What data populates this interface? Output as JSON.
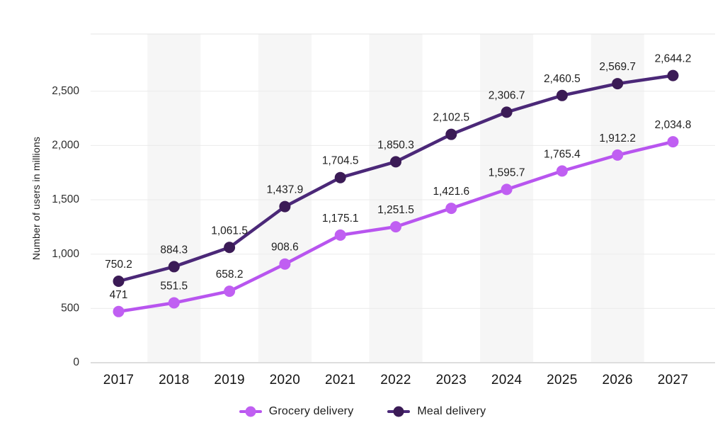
{
  "chart_data": {
    "type": "line",
    "title": "",
    "xlabel": "",
    "ylabel": "Number of users in millions",
    "categories": [
      "2017",
      "2018",
      "2019",
      "2020",
      "2021",
      "2022",
      "2023",
      "2024",
      "2025",
      "2026",
      "2027"
    ],
    "series": [
      {
        "name": "Grocery delivery",
        "values": [
          471,
          551.5,
          658.2,
          908.6,
          1175.1,
          1251.5,
          1421.6,
          1595.7,
          1765.4,
          1912.2,
          2034.8
        ],
        "labels": [
          "471",
          "551.5",
          "658.2",
          "908.6",
          "1,175.1",
          "1,251.5",
          "1,421.6",
          "1,595.7",
          "1,765.4",
          "1,912.2",
          "2,034.8"
        ],
        "line_color": "#b855ef",
        "dot_color": "#c05ff2"
      },
      {
        "name": "Meal delivery",
        "values": [
          750.2,
          884.3,
          1061.5,
          1437.9,
          1704.5,
          1850.3,
          2102.5,
          2306.7,
          2460.5,
          2569.7,
          2644.2
        ],
        "labels": [
          "750.2",
          "884.3",
          "1,061.5",
          "1,437.9",
          "1,704.5",
          "1,850.3",
          "2,102.5",
          "2,306.7",
          "2,460.5",
          "2,569.7",
          "2,644.2"
        ],
        "line_color": "#4b2878",
        "dot_color": "#3b1b56"
      }
    ],
    "y_axis": {
      "tick_values": [
        0,
        500,
        1000,
        1500,
        2000,
        2500
      ],
      "tick_labels": [
        "0",
        "500",
        "1,000",
        "1,500",
        "2,000",
        "2,500"
      ],
      "range": [
        0,
        3030
      ]
    },
    "striped_categories": [
      "2018",
      "2020",
      "2022",
      "2024",
      "2026"
    ],
    "grid": "horizontal",
    "legend": {
      "position": "bottom",
      "items": [
        "Grocery delivery",
        "Meal delivery"
      ]
    }
  },
  "colors": {
    "background": "#ffffff",
    "stripe": "#f6f6f6",
    "gridline": "#ebebeb",
    "baseline": "#c9c9c9",
    "grocery_accent": "#b855ef",
    "meal_accent": "#4b2878",
    "label_text": "#1e1e1e"
  }
}
